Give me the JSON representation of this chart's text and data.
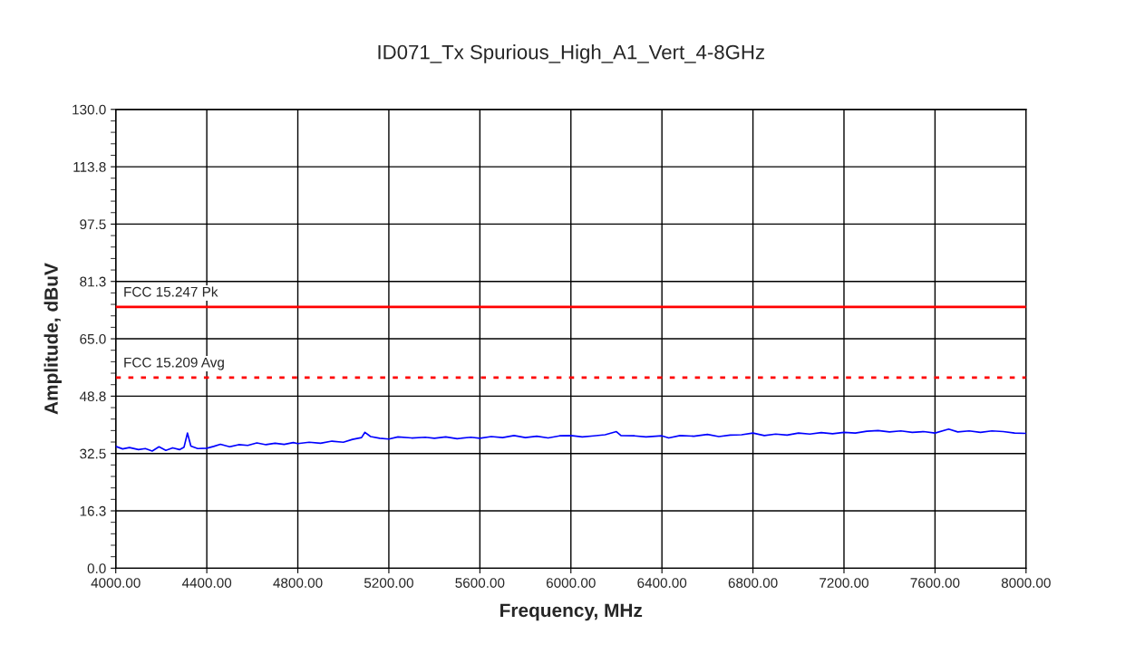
{
  "chart_data": {
    "type": "line",
    "title": "ID071_Tx Spurious_High_A1_Vert_4-8GHz",
    "xlabel": "Frequency, MHz",
    "ylabel": "Amplitude, dBuV",
    "xlim": [
      4000,
      8000
    ],
    "ylim": [
      0,
      130
    ],
    "xticks": [
      {
        "value": 4000,
        "label": "4000.00"
      },
      {
        "value": 4400,
        "label": "4400.00"
      },
      {
        "value": 4800,
        "label": "4800.00"
      },
      {
        "value": 5200,
        "label": "5200.00"
      },
      {
        "value": 5600,
        "label": "5600.00"
      },
      {
        "value": 6000,
        "label": "6000.00"
      },
      {
        "value": 6400,
        "label": "6400.00"
      },
      {
        "value": 6800,
        "label": "6800.00"
      },
      {
        "value": 7200,
        "label": "7200.00"
      },
      {
        "value": 7600,
        "label": "7600.00"
      },
      {
        "value": 8000,
        "label": "8000.00"
      }
    ],
    "yticks": [
      {
        "value": 0,
        "label": "0.0"
      },
      {
        "value": 16.25,
        "label": "16.3"
      },
      {
        "value": 32.5,
        "label": "32.5"
      },
      {
        "value": 48.75,
        "label": "48.8"
      },
      {
        "value": 65,
        "label": "65.0"
      },
      {
        "value": 81.25,
        "label": "81.3"
      },
      {
        "value": 97.5,
        "label": "97.5"
      },
      {
        "value": 113.75,
        "label": "113.8"
      },
      {
        "value": 130,
        "label": "130.0"
      }
    ],
    "grid": true,
    "legend": false,
    "marker": "none",
    "line_style": "solid",
    "series": [
      {
        "color": "#0000ff",
        "x": [
          4000,
          4030,
          4060,
          4100,
          4130,
          4160,
          4190,
          4220,
          4250,
          4280,
          4300,
          4315,
          4330,
          4360,
          4400,
          4430,
          4460,
          4500,
          4540,
          4580,
          4620,
          4660,
          4700,
          4740,
          4780,
          4800,
          4850,
          4900,
          4950,
          5000,
          5040,
          5080,
          5095,
          5120,
          5160,
          5200,
          5240,
          5300,
          5360,
          5400,
          5450,
          5500,
          5560,
          5600,
          5650,
          5700,
          5750,
          5800,
          5850,
          5900,
          5950,
          6000,
          6050,
          6100,
          6150,
          6200,
          6220,
          6280,
          6330,
          6400,
          6430,
          6480,
          6540,
          6600,
          6650,
          6700,
          6750,
          6800,
          6850,
          6900,
          6950,
          7000,
          7050,
          7100,
          7150,
          7200,
          7250,
          7300,
          7350,
          7400,
          7450,
          7500,
          7550,
          7600,
          7660,
          7700,
          7750,
          7800,
          7850,
          7900,
          7950,
          8000
        ],
        "values": [
          34.5,
          33.8,
          34.2,
          33.6,
          33.9,
          33.2,
          34.4,
          33.4,
          34.1,
          33.6,
          34.3,
          38.3,
          34.6,
          33.9,
          34.0,
          34.5,
          35.1,
          34.4,
          35.0,
          34.8,
          35.5,
          35.0,
          35.4,
          35.1,
          35.6,
          35.3,
          35.7,
          35.4,
          36.0,
          35.7,
          36.5,
          37.0,
          38.5,
          37.3,
          36.8,
          36.6,
          37.2,
          36.9,
          37.1,
          36.8,
          37.2,
          36.7,
          37.1,
          36.8,
          37.3,
          37.0,
          37.6,
          37.0,
          37.4,
          36.9,
          37.5,
          37.6,
          37.2,
          37.5,
          37.8,
          38.7,
          37.6,
          37.5,
          37.2,
          37.5,
          36.9,
          37.6,
          37.4,
          37.9,
          37.3,
          37.7,
          37.8,
          38.3,
          37.6,
          38.0,
          37.7,
          38.3,
          38.0,
          38.4,
          38.1,
          38.5,
          38.3,
          38.8,
          39.0,
          38.6,
          38.9,
          38.5,
          38.7,
          38.3,
          39.4,
          38.6,
          38.9,
          38.5,
          38.9,
          38.7,
          38.3,
          38.2
        ]
      }
    ],
    "ref_lines": [
      {
        "axis": "y",
        "value": 74,
        "label": "FCC 15.247 Pk",
        "color": "#ff0000",
        "line_style": "solid"
      },
      {
        "axis": "y",
        "value": 54,
        "label": "FCC 15.209 Avg",
        "color": "#ff0000",
        "line_style": "dotted"
      }
    ]
  }
}
